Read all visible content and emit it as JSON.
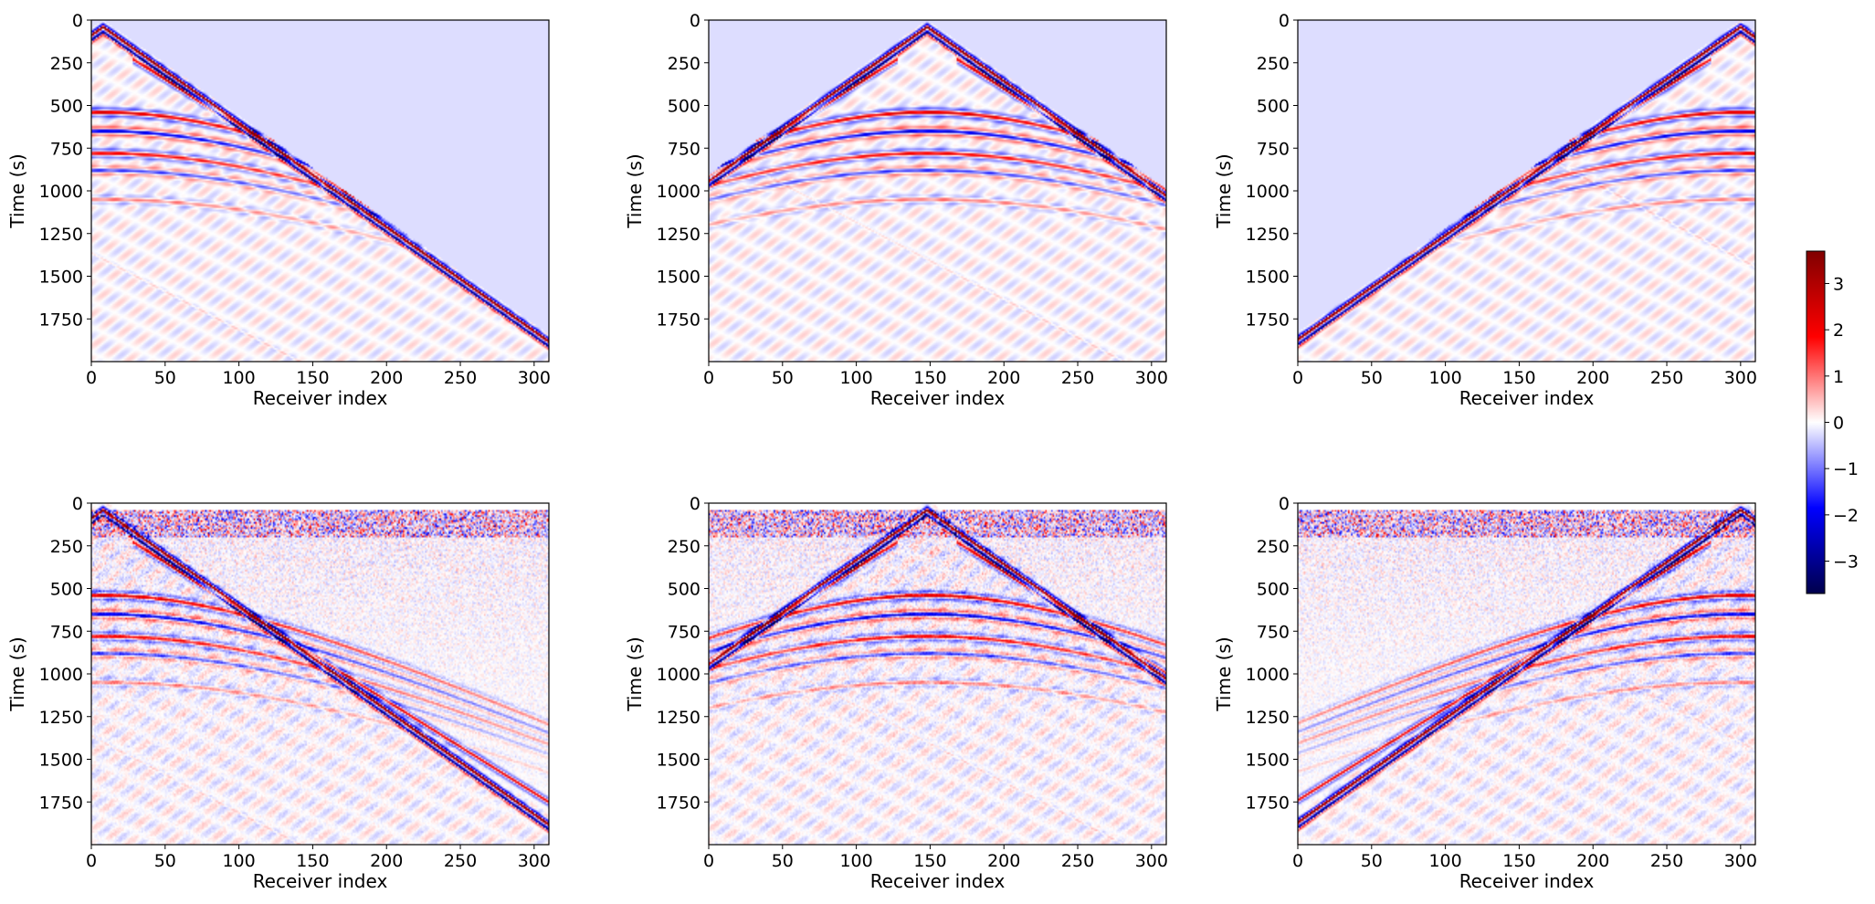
{
  "chart_data": {
    "type": "heatmap",
    "description_layout": "2x3 grid of seismic shot gathers; top row clean, bottom row noisy",
    "colormap": "seismic",
    "colorbar": {
      "range": [
        -3.7,
        3.7
      ],
      "ticks": [
        3,
        2,
        1,
        0,
        -1,
        -2,
        -3
      ],
      "tick_labels": [
        "3",
        "2",
        "1",
        "0",
        "−1",
        "−2",
        "−3"
      ]
    },
    "axes": {
      "xlabel": "Receiver index",
      "ylabel": "Time (s)",
      "xlim": [
        0,
        310
      ],
      "ylim": [
        2000,
        0
      ],
      "xticks": [
        0,
        50,
        100,
        150,
        200,
        250,
        300
      ],
      "xtick_labels": [
        "0",
        "50",
        "100",
        "150",
        "200",
        "250",
        "300"
      ],
      "yticks": [
        0,
        250,
        500,
        750,
        1000,
        1250,
        1500,
        1750
      ],
      "ytick_labels": [
        "0",
        "250",
        "500",
        "750",
        "1000",
        "1250",
        "1500",
        "1750"
      ]
    },
    "panels": [
      {
        "row": 0,
        "col": 0,
        "source_receiver": 8,
        "noisy": false
      },
      {
        "row": 0,
        "col": 1,
        "source_receiver": 148,
        "noisy": false
      },
      {
        "row": 0,
        "col": 2,
        "source_receiver": 300,
        "noisy": false
      },
      {
        "row": 1,
        "col": 0,
        "source_receiver": 8,
        "noisy": true
      },
      {
        "row": 1,
        "col": 1,
        "source_receiver": 148,
        "noisy": true
      },
      {
        "row": 1,
        "col": 2,
        "source_receiver": 300,
        "noisy": true
      }
    ]
  }
}
